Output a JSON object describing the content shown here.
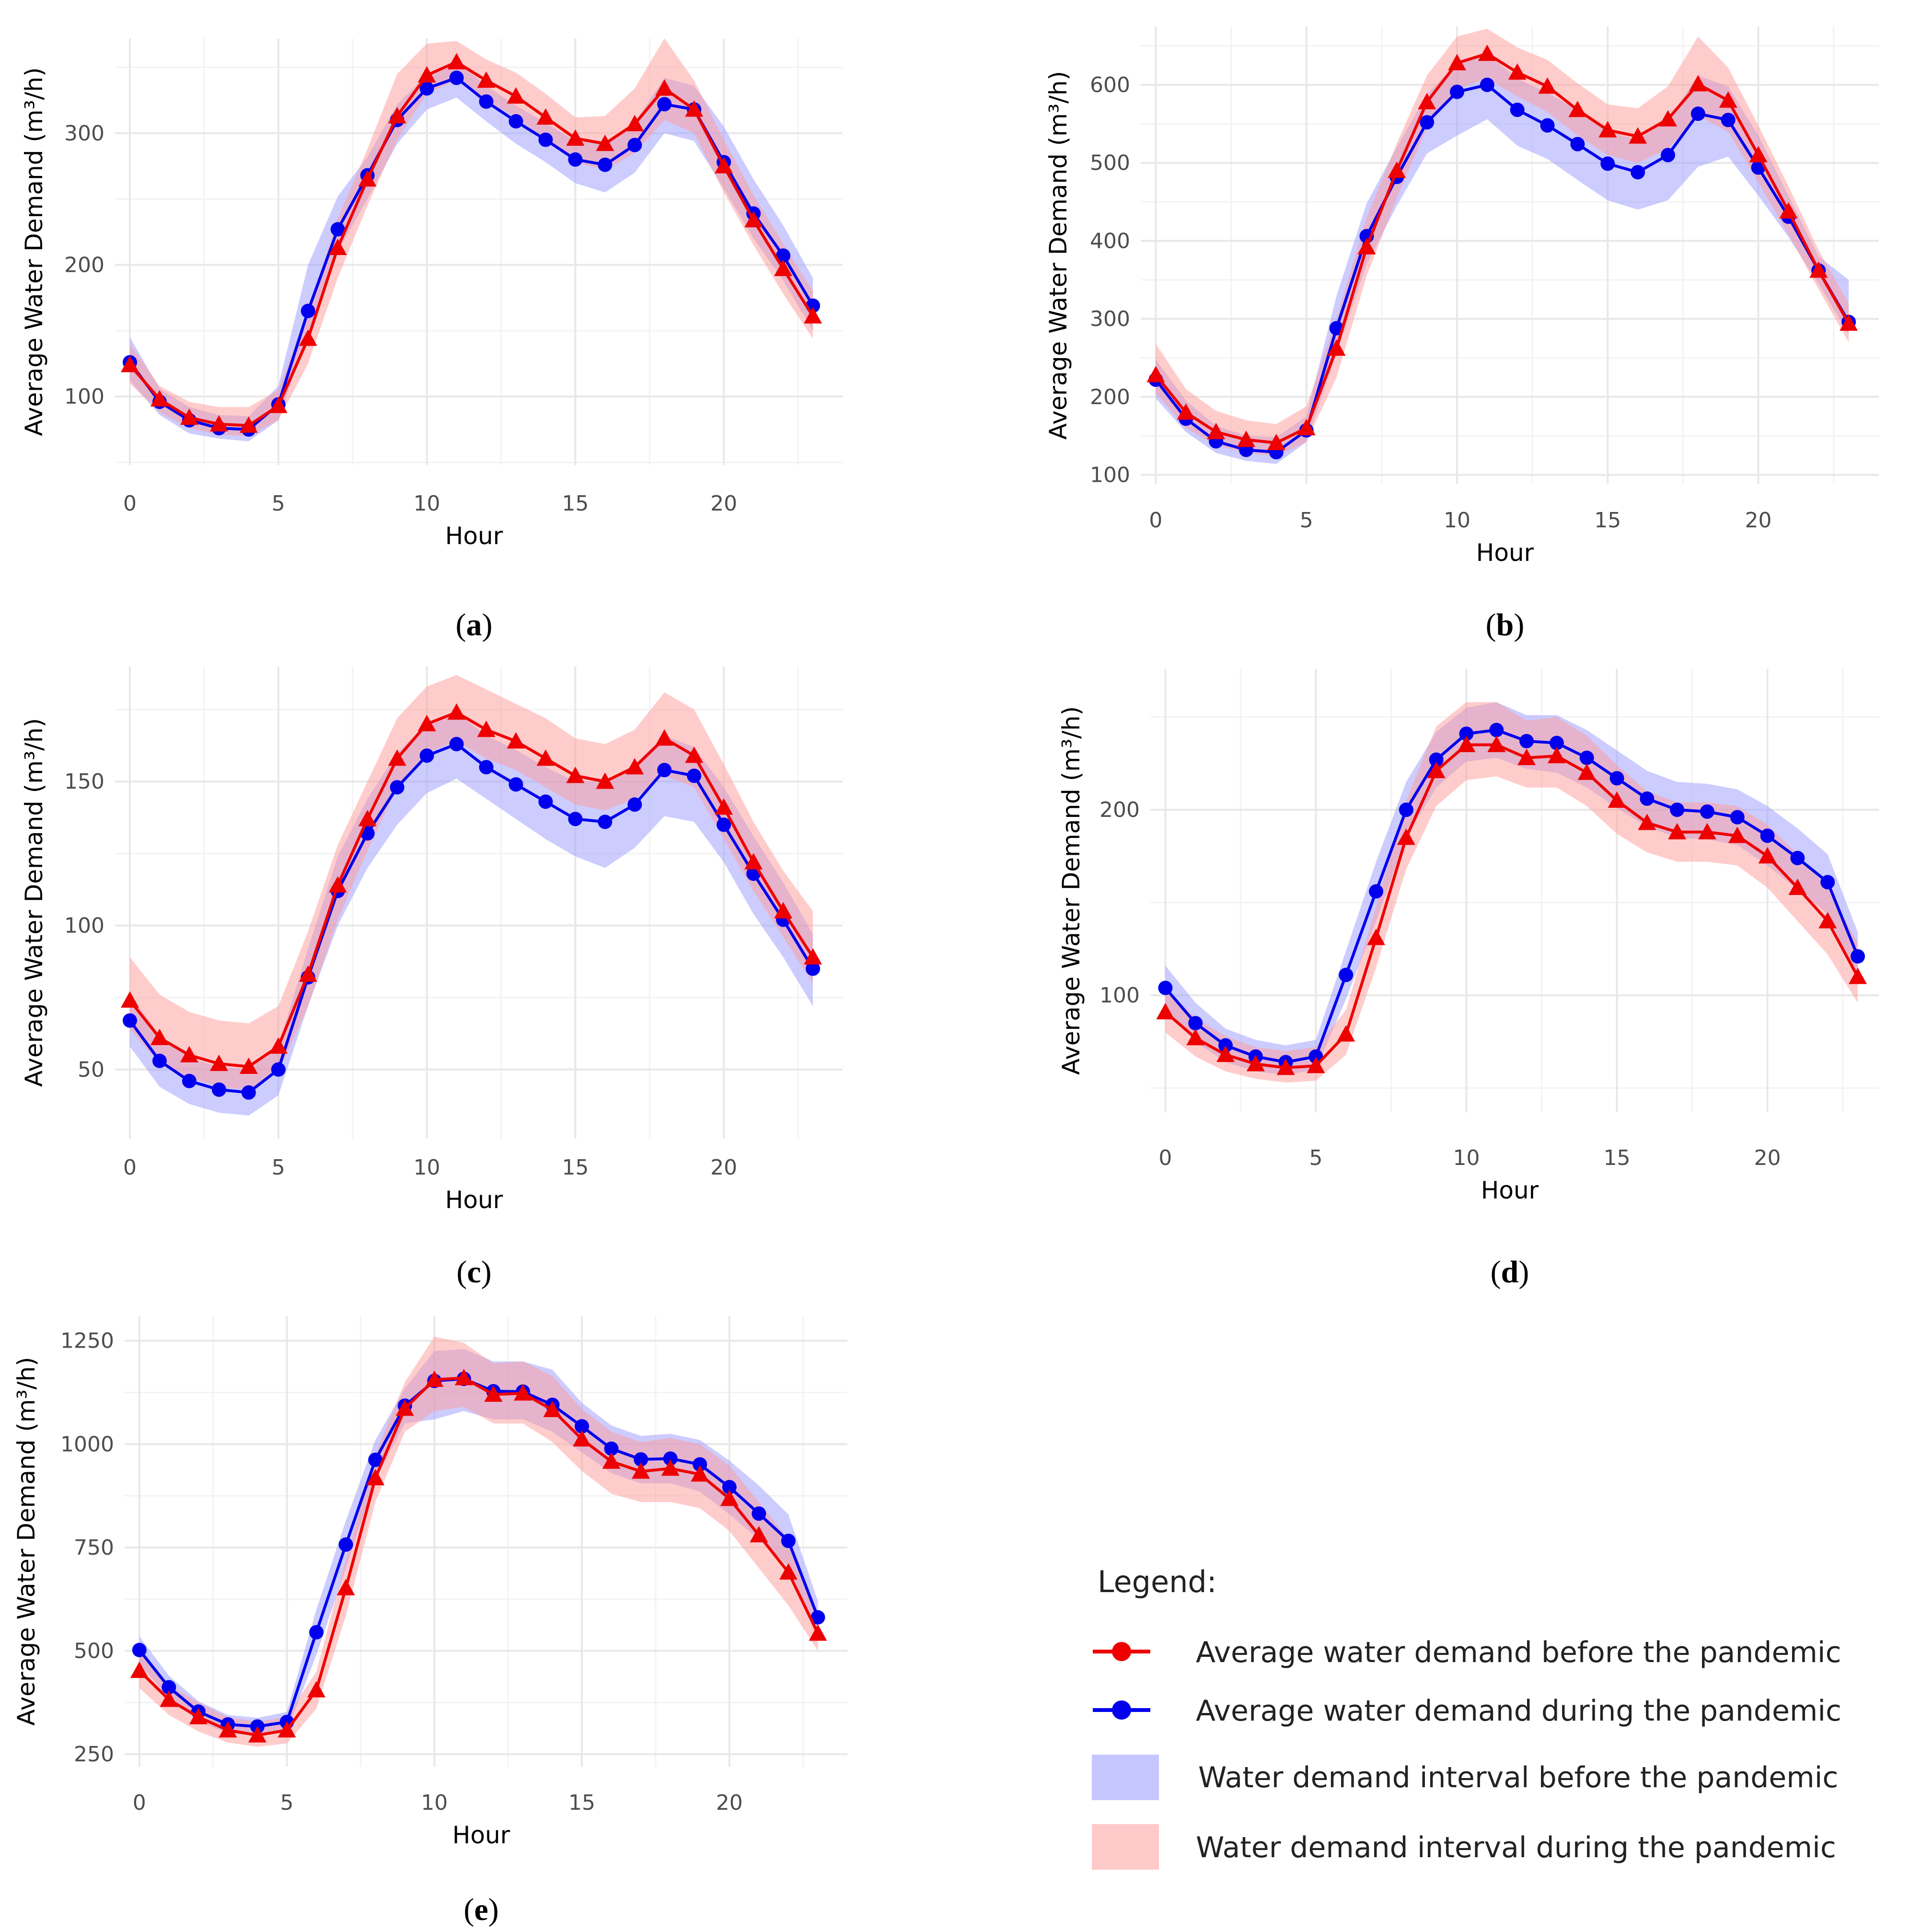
{
  "figure": {
    "legend": {
      "title": "Legend:",
      "items": [
        {
          "label": "Average water demand before the pandemic",
          "kind": "line-triangle",
          "color": "#ee0000"
        },
        {
          "label": "Average water demand during the pandemic",
          "kind": "line-circle",
          "color": "#0000ee"
        },
        {
          "label": "Water demand interval before the pandemic",
          "kind": "band",
          "color": "#b3b3ff"
        },
        {
          "label": "Water demand interval during the pandemic",
          "kind": "band",
          "color": "#ffb8b8"
        }
      ]
    },
    "colors": {
      "before_line": "#ee0000",
      "during_line": "#0000ee",
      "before_band": "#9a9aff",
      "during_band": "#ff9a9a"
    }
  },
  "chart_data": [
    {
      "id": "a",
      "type": "line",
      "caption": "a",
      "title": "",
      "xlabel": "Hour",
      "ylabel": "Average Water Demand (m³/h)",
      "xlim": [
        -0.5,
        24
      ],
      "ylim": [
        48,
        372
      ],
      "xticks": [
        0,
        5,
        10,
        15,
        20
      ],
      "yticks": [
        100,
        200,
        300
      ],
      "x": [
        0,
        1,
        2,
        3,
        4,
        5,
        6,
        7,
        8,
        9,
        10,
        11,
        12,
        13,
        14,
        15,
        16,
        17,
        18,
        19,
        20,
        21,
        22,
        23
      ],
      "series": [
        {
          "name": "Average water demand before the pandemic",
          "marker": "triangle",
          "values": [
            124,
            98,
            84,
            79,
            78,
            93,
            144,
            213,
            265,
            313,
            344,
            354,
            340,
            328,
            312,
            296,
            292,
            307,
            334,
            318,
            275,
            234,
            197,
            161
          ],
          "band_lower": [
            110,
            88,
            76,
            71,
            70,
            82,
            125,
            190,
            245,
            295,
            330,
            340,
            325,
            312,
            295,
            278,
            272,
            285,
            310,
            300,
            255,
            215,
            178,
            144
          ],
          "band_upper": [
            140,
            108,
            96,
            92,
            92,
            105,
            165,
            235,
            288,
            345,
            368,
            370,
            356,
            346,
            330,
            312,
            313,
            334,
            372,
            340,
            295,
            253,
            216,
            180
          ]
        },
        {
          "name": "Average water demand during the pandemic",
          "marker": "circle",
          "values": [
            126,
            96,
            82,
            76,
            75,
            94,
            165,
            227,
            268,
            310,
            334,
            342,
            324,
            309,
            295,
            280,
            276,
            291,
            322,
            318,
            278,
            239,
            207,
            169
          ],
          "band_lower": [
            112,
            86,
            72,
            68,
            66,
            82,
            148,
            210,
            250,
            292,
            318,
            327,
            309,
            292,
            278,
            262,
            255,
            270,
            300,
            294,
            258,
            220,
            188,
            150
          ],
          "band_upper": [
            145,
            106,
            92,
            86,
            85,
            108,
            200,
            252,
            282,
            322,
            344,
            355,
            336,
            321,
            308,
            294,
            293,
            308,
            342,
            336,
            305,
            265,
            230,
            190
          ]
        }
      ]
    },
    {
      "id": "b",
      "type": "line",
      "caption": "b",
      "title": "",
      "xlabel": "Hour",
      "ylabel": "Average Water Demand (m³/h)",
      "xlim": [
        -0.5,
        24
      ],
      "ylim": [
        88,
        675
      ],
      "xticks": [
        0,
        5,
        10,
        15,
        20
      ],
      "yticks": [
        100,
        200,
        300,
        400,
        500,
        600
      ],
      "x": [
        0,
        1,
        2,
        3,
        4,
        5,
        6,
        7,
        8,
        9,
        10,
        11,
        12,
        13,
        14,
        15,
        16,
        17,
        18,
        19,
        20,
        21,
        22,
        23
      ],
      "series": [
        {
          "name": "Average water demand before the pandemic",
          "marker": "triangle",
          "values": [
            228,
            180,
            155,
            145,
            141,
            160,
            262,
            392,
            490,
            578,
            628,
            640,
            616,
            598,
            568,
            542,
            534,
            556,
            601,
            580,
            510,
            438,
            362,
            294
          ],
          "band_lower": [
            205,
            160,
            138,
            128,
            124,
            142,
            225,
            355,
            455,
            545,
            595,
            608,
            585,
            565,
            535,
            510,
            500,
            518,
            560,
            540,
            475,
            408,
            338,
            270
          ],
          "band_upper": [
            268,
            210,
            182,
            170,
            165,
            188,
            300,
            430,
            525,
            612,
            662,
            672,
            648,
            632,
            602,
            575,
            570,
            598,
            662,
            622,
            548,
            470,
            388,
            320
          ]
        },
        {
          "name": "Average water demand during the pandemic",
          "marker": "circle",
          "values": [
            222,
            172,
            143,
            132,
            129,
            157,
            288,
            406,
            482,
            552,
            591,
            600,
            568,
            548,
            524,
            499,
            488,
            510,
            563,
            555,
            494,
            431,
            362,
            296
          ],
          "band_lower": [
            198,
            155,
            128,
            118,
            114,
            142,
            255,
            370,
            445,
            512,
            535,
            556,
            522,
            505,
            478,
            452,
            440,
            452,
            495,
            508,
            458,
            405,
            345,
            280
          ],
          "band_upper": [
            248,
            195,
            163,
            150,
            148,
            175,
            330,
            448,
            520,
            588,
            628,
            640,
            608,
            590,
            568,
            540,
            530,
            555,
            612,
            598,
            535,
            458,
            380,
            350
          ]
        }
      ]
    },
    {
      "id": "c",
      "type": "line",
      "caption": "c",
      "title": "",
      "xlabel": "Hour",
      "ylabel": "Average Water Demand (m³/h)",
      "xlim": [
        -0.5,
        24
      ],
      "ylim": [
        26,
        190
      ],
      "xticks": [
        0,
        5,
        10,
        15,
        20
      ],
      "yticks": [
        50,
        100,
        150
      ],
      "x": [
        0,
        1,
        2,
        3,
        4,
        5,
        6,
        7,
        8,
        9,
        10,
        11,
        12,
        13,
        14,
        15,
        16,
        17,
        18,
        19,
        20,
        21,
        22,
        23
      ],
      "series": [
        {
          "name": "Average water demand before the pandemic",
          "marker": "triangle",
          "values": [
            74,
            61,
            55,
            52,
            51,
            58,
            83,
            114,
            137,
            158,
            170,
            174,
            168,
            164,
            158,
            152,
            150,
            155,
            165,
            159,
            141,
            122,
            105,
            89
          ],
          "band_lower": [
            64,
            52,
            47,
            44,
            43,
            49,
            72,
            102,
            126,
            148,
            160,
            164,
            158,
            154,
            148,
            142,
            140,
            144,
            152,
            148,
            130,
            112,
            96,
            80
          ],
          "band_upper": [
            89,
            76,
            70,
            67,
            66,
            72,
            98,
            128,
            150,
            172,
            183,
            187,
            182,
            177,
            172,
            165,
            163,
            168,
            181,
            175,
            156,
            136,
            119,
            105
          ]
        },
        {
          "name": "Average water demand during the pandemic",
          "marker": "circle",
          "values": [
            67,
            53,
            46,
            43,
            42,
            50,
            82,
            112,
            132,
            148,
            159,
            163,
            155,
            149,
            143,
            137,
            136,
            142,
            154,
            152,
            135,
            118,
            102,
            85
          ],
          "band_lower": [
            58,
            44,
            38,
            35,
            34,
            41,
            72,
            100,
            120,
            135,
            146,
            151,
            144,
            137,
            130,
            124,
            120,
            127,
            138,
            136,
            122,
            104,
            89,
            72
          ],
          "band_upper": [
            76,
            62,
            54,
            51,
            50,
            58,
            92,
            124,
            144,
            160,
            170,
            174,
            166,
            161,
            155,
            150,
            150,
            156,
            166,
            162,
            148,
            131,
            115,
            97
          ]
        }
      ]
    },
    {
      "id": "d",
      "type": "line",
      "caption": "d",
      "title": "",
      "xlabel": "Hour",
      "ylabel": "Average Water Demand (m³/h)",
      "xlim": [
        -0.5,
        23.7
      ],
      "ylim": [
        37,
        276
      ],
      "xticks": [
        0,
        5,
        10,
        15,
        20
      ],
      "yticks": [
        100,
        200
      ],
      "x": [
        0,
        1,
        2,
        3,
        4,
        5,
        6,
        7,
        8,
        9,
        10,
        11,
        12,
        13,
        14,
        15,
        16,
        17,
        18,
        19,
        20,
        21,
        22,
        23
      ],
      "series": [
        {
          "name": "Average water demand before the pandemic",
          "marker": "triangle",
          "values": [
            91,
            77,
            68,
            63,
            61,
            62,
            79,
            131,
            185,
            221,
            235,
            235,
            228,
            229,
            220,
            205,
            193,
            188,
            188,
            186,
            175,
            158,
            140,
            110
          ],
          "band_lower": [
            80,
            67,
            59,
            55,
            53,
            54,
            68,
            115,
            168,
            202,
            216,
            218,
            212,
            212,
            202,
            187,
            177,
            172,
            172,
            170,
            158,
            140,
            122,
            96
          ],
          "band_upper": [
            104,
            88,
            78,
            72,
            70,
            72,
            92,
            148,
            205,
            245,
            258,
            258,
            248,
            250,
            240,
            224,
            210,
            204,
            204,
            202,
            192,
            176,
            158,
            128
          ]
        },
        {
          "name": "Average water demand during the pandemic",
          "marker": "circle",
          "values": [
            104,
            85,
            73,
            67,
            64,
            67,
            111,
            156,
            200,
            227,
            241,
            243,
            237,
            236,
            228,
            217,
            206,
            200,
            199,
            196,
            186,
            174,
            161,
            121
          ],
          "band_lower": [
            92,
            75,
            64,
            59,
            57,
            60,
            98,
            140,
            185,
            212,
            226,
            228,
            222,
            220,
            212,
            201,
            191,
            185,
            184,
            181,
            170,
            157,
            144,
            108
          ],
          "band_upper": [
            116,
            96,
            82,
            76,
            73,
            76,
            124,
            172,
            215,
            242,
            255,
            258,
            251,
            251,
            243,
            232,
            221,
            215,
            214,
            211,
            202,
            190,
            176,
            134
          ]
        }
      ]
    },
    {
      "id": "e",
      "type": "line",
      "caption": "e",
      "title": "",
      "xlabel": "Hour",
      "ylabel": "Average Water Demand (m³/h)",
      "xlim": [
        -0.5,
        24
      ],
      "ylim": [
        220,
        1310
      ],
      "xticks": [
        0,
        5,
        10,
        15,
        20
      ],
      "yticks": [
        250,
        500,
        750,
        1000,
        1250
      ],
      "x": [
        0,
        1,
        2,
        3,
        4,
        5,
        6,
        7,
        8,
        9,
        10,
        11,
        12,
        13,
        14,
        15,
        16,
        17,
        18,
        19,
        20,
        21,
        22,
        23
      ],
      "series": [
        {
          "name": "Average water demand before the pandemic",
          "marker": "triangle",
          "values": [
            452,
            382,
            340,
            308,
            296,
            308,
            405,
            652,
            918,
            1086,
            1156,
            1160,
            1120,
            1123,
            1083,
            1012,
            958,
            934,
            941,
            927,
            868,
            780,
            690,
            542
          ],
          "band_lower": [
            410,
            345,
            305,
            278,
            268,
            276,
            360,
            585,
            860,
            1030,
            1080,
            1090,
            1050,
            1050,
            1005,
            935,
            880,
            860,
            860,
            845,
            790,
            700,
            610,
            500
          ],
          "band_upper": [
            495,
            418,
            375,
            340,
            328,
            340,
            450,
            720,
            975,
            1150,
            1260,
            1245,
            1195,
            1200,
            1165,
            1085,
            1030,
            1005,
            1015,
            1000,
            948,
            860,
            770,
            585
          ]
        },
        {
          "name": "Average water demand during the pandemic",
          "marker": "circle",
          "values": [
            502,
            412,
            353,
            322,
            317,
            328,
            545,
            757,
            962,
            1093,
            1153,
            1158,
            1128,
            1127,
            1095,
            1043,
            989,
            963,
            965,
            951,
            896,
            832,
            766,
            581
          ],
          "band_lower": [
            470,
            385,
            330,
            300,
            295,
            305,
            490,
            700,
            915,
            1050,
            1060,
            1080,
            1060,
            1060,
            1030,
            980,
            930,
            905,
            905,
            885,
            830,
            770,
            705,
            540
          ],
          "band_upper": [
            535,
            440,
            378,
            345,
            338,
            352,
            600,
            815,
            1010,
            1135,
            1225,
            1230,
            1200,
            1200,
            1180,
            1100,
            1045,
            1020,
            1025,
            1010,
            960,
            900,
            830,
            620
          ]
        }
      ]
    }
  ]
}
